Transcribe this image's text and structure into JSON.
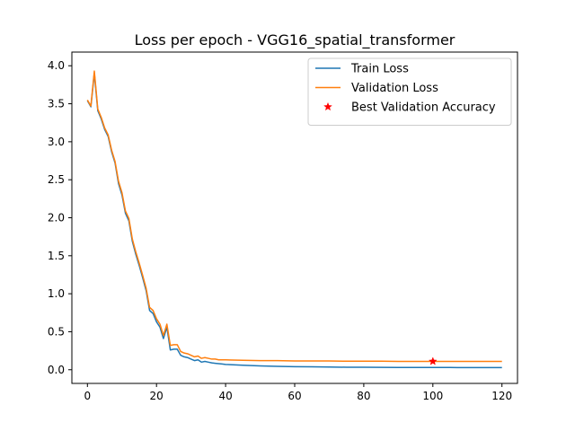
{
  "chart_data": {
    "type": "line",
    "title": "Loss per epoch - VGG16_spatial_transformer",
    "xlabel": "",
    "ylabel": "",
    "xlim": [
      -4.5,
      124.5
    ],
    "ylim": [
      -0.18,
      4.18
    ],
    "xticks": [
      0,
      20,
      40,
      60,
      80,
      100,
      120
    ],
    "yticks": [
      0.0,
      0.5,
      1.0,
      1.5,
      2.0,
      2.5,
      3.0,
      3.5,
      4.0
    ],
    "grid": false,
    "legend_placement": "top-right",
    "series": [
      {
        "name": "Train Loss",
        "color": "#1f77b4",
        "x": [
          0,
          1,
          2,
          3,
          4,
          5,
          6,
          7,
          8,
          9,
          10,
          11,
          12,
          13,
          14,
          15,
          16,
          17,
          18,
          19,
          20,
          21,
          22,
          23,
          24,
          25,
          26,
          27,
          28,
          29,
          30,
          31,
          32,
          33,
          34,
          35,
          36,
          37,
          38,
          39,
          40,
          45,
          50,
          55,
          60,
          65,
          70,
          75,
          80,
          85,
          90,
          95,
          100,
          105,
          110,
          115,
          120
        ],
        "y": [
          3.54,
          3.46,
          3.9,
          3.41,
          3.3,
          3.16,
          3.07,
          2.87,
          2.72,
          2.45,
          2.3,
          2.06,
          1.96,
          1.69,
          1.52,
          1.37,
          1.21,
          1.04,
          0.78,
          0.74,
          0.63,
          0.56,
          0.41,
          0.56,
          0.26,
          0.27,
          0.27,
          0.19,
          0.17,
          0.16,
          0.14,
          0.12,
          0.13,
          0.1,
          0.11,
          0.1,
          0.09,
          0.085,
          0.08,
          0.075,
          0.07,
          0.06,
          0.05,
          0.045,
          0.04,
          0.038,
          0.035,
          0.033,
          0.032,
          0.031,
          0.03,
          0.03,
          0.03,
          0.029,
          0.028,
          0.028,
          0.028
        ]
      },
      {
        "name": "Validation Loss",
        "color": "#ff7f0e",
        "x": [
          0,
          1,
          2,
          3,
          4,
          5,
          6,
          7,
          8,
          9,
          10,
          11,
          12,
          13,
          14,
          15,
          16,
          17,
          18,
          19,
          20,
          21,
          22,
          23,
          24,
          25,
          26,
          27,
          28,
          29,
          30,
          31,
          32,
          33,
          34,
          35,
          36,
          37,
          38,
          39,
          40,
          45,
          50,
          55,
          60,
          65,
          70,
          75,
          80,
          85,
          90,
          95,
          100,
          105,
          110,
          115,
          120
        ],
        "y": [
          3.55,
          3.47,
          3.93,
          3.43,
          3.32,
          3.18,
          3.09,
          2.89,
          2.74,
          2.48,
          2.33,
          2.09,
          1.99,
          1.72,
          1.55,
          1.4,
          1.24,
          1.07,
          0.82,
          0.78,
          0.67,
          0.6,
          0.45,
          0.6,
          0.32,
          0.33,
          0.33,
          0.24,
          0.22,
          0.21,
          0.19,
          0.17,
          0.18,
          0.15,
          0.16,
          0.15,
          0.14,
          0.14,
          0.13,
          0.13,
          0.13,
          0.125,
          0.12,
          0.12,
          0.115,
          0.115,
          0.115,
          0.112,
          0.112,
          0.112,
          0.11,
          0.11,
          0.11,
          0.11,
          0.11,
          0.11,
          0.11
        ]
      }
    ],
    "markers": [
      {
        "name": "Best Validation Accuracy",
        "color": "#ff0000",
        "symbol": "star",
        "x": 100,
        "y": 0.11
      }
    ]
  }
}
